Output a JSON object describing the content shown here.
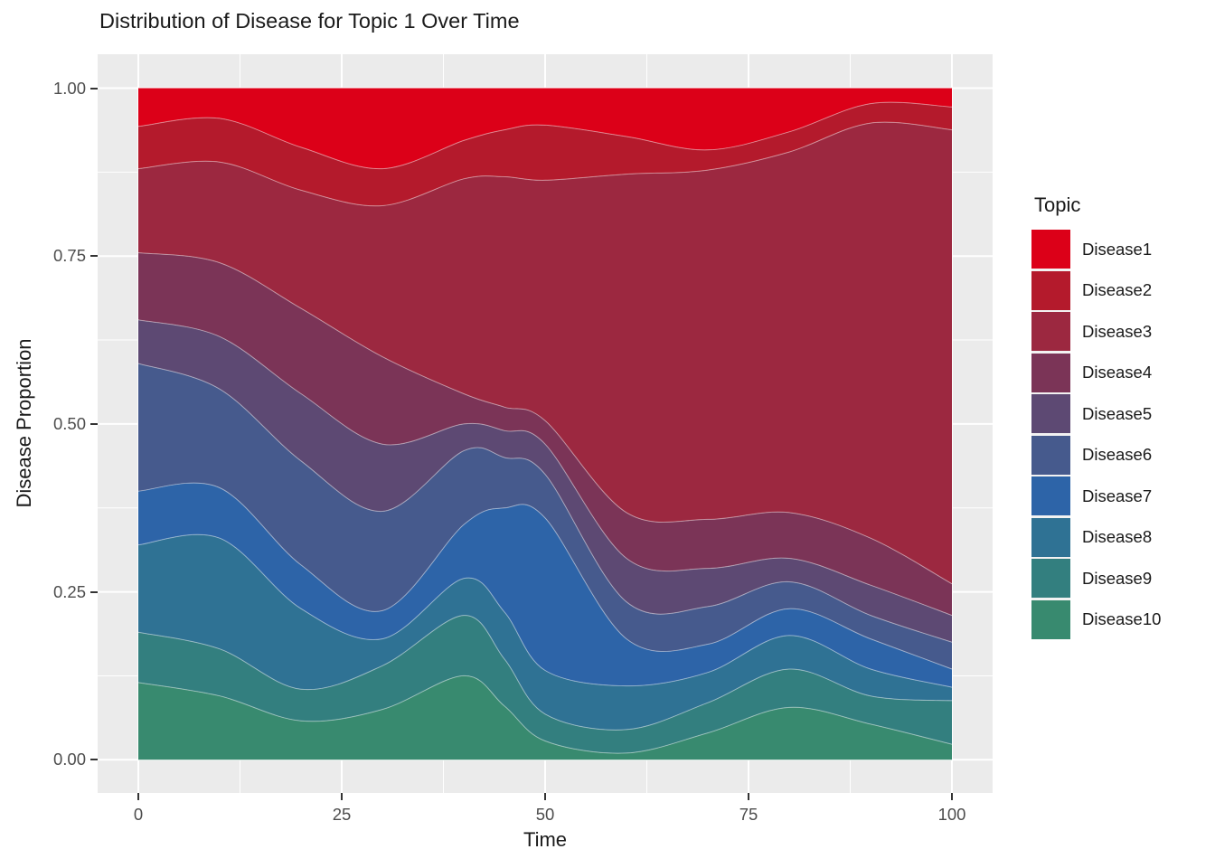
{
  "chart_data": {
    "type": "area",
    "title": "Distribution of Disease for Topic 1 Over Time",
    "xlabel": "Time",
    "ylabel": "Disease Proportion",
    "xlim": [
      0,
      100
    ],
    "ylim": [
      0,
      1
    ],
    "x_ticks": [
      0,
      25,
      50,
      75,
      100
    ],
    "x_tick_labels": [
      "0",
      "25",
      "50",
      "75",
      "100"
    ],
    "x_minor_ticks": [
      12.5,
      37.5,
      62.5,
      87.5
    ],
    "y_ticks": [
      0,
      0.25,
      0.5,
      0.75,
      1
    ],
    "y_tick_labels": [
      "0.00",
      "0.25",
      "0.50",
      "0.75",
      "1.00"
    ],
    "y_minor_ticks": [
      0.125,
      0.375,
      0.625,
      0.875
    ],
    "grid": "white major and minor gridlines on grey panel",
    "panel_background": "#EBEBEB",
    "gridline_color": "#FFFFFF",
    "tick_label_color": "#4D4D4D",
    "text_color": "#1A1A1A",
    "legend": {
      "title": "Topic",
      "position": "right",
      "entries": [
        {
          "label": "Disease1",
          "color": "#DC0018"
        },
        {
          "label": "Disease2",
          "color": "#B41A2C"
        },
        {
          "label": "Disease3",
          "color": "#9C2840"
        },
        {
          "label": "Disease4",
          "color": "#7B3457"
        },
        {
          "label": "Disease5",
          "color": "#5D4973"
        },
        {
          "label": "Disease6",
          "color": "#465A8D"
        },
        {
          "label": "Disease7",
          "color": "#2D64A8"
        },
        {
          "label": "Disease8",
          "color": "#2F7294"
        },
        {
          "label": "Disease9",
          "color": "#337F7F"
        },
        {
          "label": "Disease10",
          "color": "#388A6F"
        }
      ]
    },
    "stack_order_bottom_to_top": [
      "Disease10",
      "Disease9",
      "Disease8",
      "Disease7",
      "Disease6",
      "Disease5",
      "Disease4",
      "Disease3",
      "Disease2",
      "Disease1"
    ],
    "x": [
      0,
      10,
      20,
      30,
      40,
      45,
      50,
      60,
      70,
      80,
      90,
      100
    ],
    "cumulative_upper": {
      "Disease10": [
        0.115,
        0.095,
        0.058,
        0.075,
        0.125,
        0.08,
        0.028,
        0.01,
        0.04,
        0.078,
        0.053,
        0.023
      ],
      "Disease9": [
        0.19,
        0.165,
        0.105,
        0.14,
        0.215,
        0.15,
        0.068,
        0.045,
        0.085,
        0.135,
        0.095,
        0.088
      ],
      "Disease8": [
        0.32,
        0.33,
        0.225,
        0.18,
        0.27,
        0.22,
        0.133,
        0.11,
        0.13,
        0.185,
        0.135,
        0.108
      ],
      "Disease7": [
        0.4,
        0.405,
        0.29,
        0.222,
        0.35,
        0.375,
        0.36,
        0.18,
        0.172,
        0.225,
        0.18,
        0.135
      ],
      "Disease6": [
        0.59,
        0.552,
        0.445,
        0.37,
        0.46,
        0.45,
        0.425,
        0.235,
        0.228,
        0.265,
        0.215,
        0.175
      ],
      "Disease5": [
        0.655,
        0.63,
        0.545,
        0.47,
        0.5,
        0.49,
        0.47,
        0.3,
        0.285,
        0.3,
        0.26,
        0.215
      ],
      "Disease4": [
        0.755,
        0.74,
        0.672,
        0.6,
        0.545,
        0.525,
        0.505,
        0.368,
        0.358,
        0.368,
        0.33,
        0.262
      ],
      "Disease3": [
        0.88,
        0.89,
        0.848,
        0.825,
        0.865,
        0.868,
        0.863,
        0.872,
        0.878,
        0.905,
        0.948,
        0.938
      ],
      "Disease2": [
        0.943,
        0.955,
        0.912,
        0.88,
        0.922,
        0.938,
        0.945,
        0.928,
        0.908,
        0.935,
        0.977,
        0.972
      ],
      "Disease1": [
        1,
        1,
        1,
        1,
        1,
        1,
        1,
        1,
        1,
        1,
        1,
        1
      ]
    }
  }
}
